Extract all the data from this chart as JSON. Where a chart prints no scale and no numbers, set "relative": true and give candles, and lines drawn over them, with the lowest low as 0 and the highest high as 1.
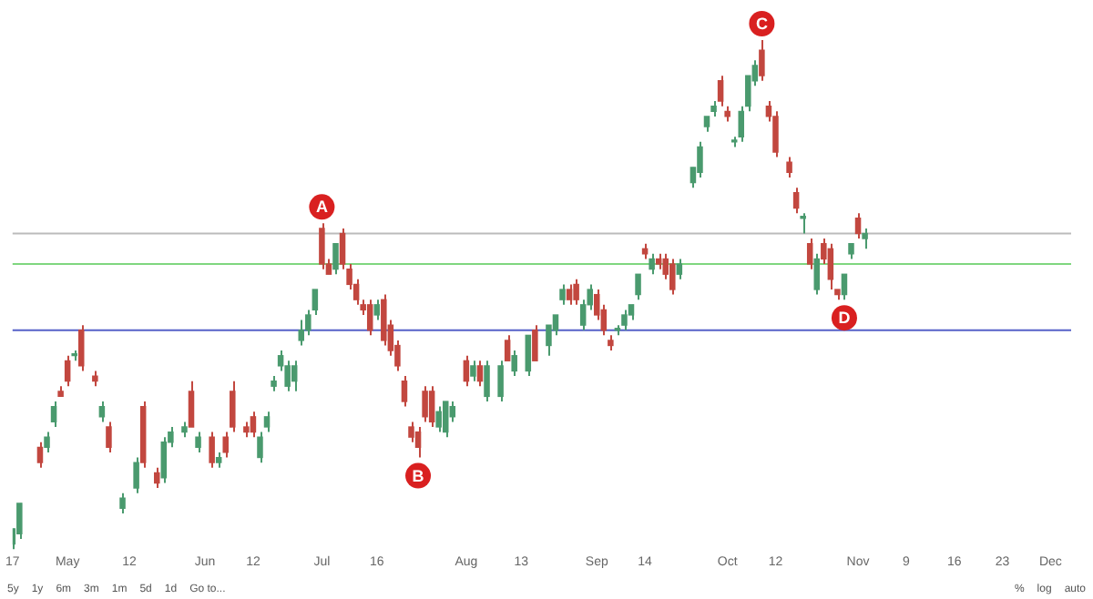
{
  "chart_data": {
    "type": "candlestick",
    "relative": true,
    "grid": false,
    "legend": false,
    "categories": [
      "17",
      null,
      null,
      null,
      null,
      null,
      null,
      null,
      "May",
      null,
      null,
      null,
      null,
      null,
      null,
      null,
      null,
      "12",
      null,
      null,
      null,
      null,
      null,
      null,
      null,
      null,
      null,
      null,
      "Jun",
      null,
      null,
      null,
      null,
      null,
      null,
      "12",
      null,
      null,
      null,
      null,
      null,
      null,
      null,
      null,
      null,
      "Jul",
      null,
      null,
      null,
      null,
      null,
      null,
      null,
      "16",
      null,
      null,
      null,
      null,
      null,
      null,
      null,
      null,
      null,
      null,
      null,
      null,
      "Aug",
      null,
      null,
      null,
      null,
      null,
      null,
      null,
      "13",
      null,
      null,
      null,
      null,
      null,
      null,
      null,
      null,
      null,
      null,
      "Sep",
      null,
      null,
      null,
      null,
      null,
      null,
      "14",
      null,
      null,
      null,
      null,
      null,
      null,
      null,
      null,
      null,
      null,
      null,
      "Oct",
      null,
      null,
      null,
      null,
      null,
      null,
      "12",
      null,
      null,
      null,
      null,
      null,
      null,
      null,
      null,
      null,
      null,
      null,
      "Nov",
      null,
      null,
      null,
      null,
      null,
      null,
      "9",
      null,
      null,
      null,
      null,
      null,
      null,
      "16",
      null,
      null,
      null,
      null,
      null,
      null,
      "23",
      null,
      null,
      null,
      null,
      null,
      null,
      "Dec",
      null,
      null,
      null
    ],
    "ohlc": [
      [
        0.01,
        0.04,
        0,
        0.04
      ],
      [
        0.03,
        0.09,
        0.02,
        0.09
      ],
      null,
      null,
      [
        0.2,
        0.21,
        0.16,
        0.17
      ],
      [
        0.2,
        0.23,
        0.19,
        0.22
      ],
      [
        0.25,
        0.29,
        0.24,
        0.28
      ],
      [
        0.31,
        0.32,
        0.3,
        0.3
      ],
      [
        0.37,
        0.38,
        0.32,
        0.33
      ],
      [
        0.38,
        0.39,
        0.37,
        0.38
      ],
      [
        0.43,
        0.44,
        0.35,
        0.36
      ],
      null,
      [
        0.34,
        0.35,
        0.32,
        0.33
      ],
      [
        0.26,
        0.29,
        0.25,
        0.28
      ],
      [
        0.24,
        0.25,
        0.19,
        0.2
      ],
      null,
      [
        0.08,
        0.11,
        0.07,
        0.1
      ],
      null,
      [
        0.12,
        0.18,
        0.11,
        0.17
      ],
      [
        0.28,
        0.29,
        0.16,
        0.17
      ],
      null,
      [
        0.15,
        0.16,
        0.12,
        0.13
      ],
      [
        0.14,
        0.22,
        0.13,
        0.21
      ],
      [
        0.21,
        0.24,
        0.2,
        0.23
      ],
      null,
      [
        0.23,
        0.25,
        0.22,
        0.24
      ],
      [
        0.31,
        0.33,
        0.24,
        0.24
      ],
      [
        0.2,
        0.23,
        0.19,
        0.22
      ],
      null,
      [
        0.22,
        0.23,
        0.16,
        0.17
      ],
      [
        0.17,
        0.19,
        0.16,
        0.18
      ],
      [
        0.22,
        0.23,
        0.18,
        0.19
      ],
      [
        0.31,
        0.33,
        0.23,
        0.24
      ],
      null,
      [
        0.24,
        0.25,
        0.22,
        0.23
      ],
      [
        0.26,
        0.27,
        0.22,
        0.23
      ],
      [
        0.18,
        0.23,
        0.17,
        0.22
      ],
      [
        0.24,
        0.27,
        0.23,
        0.26
      ],
      [
        0.32,
        0.34,
        0.31,
        0.33
      ],
      [
        0.36,
        0.39,
        0.35,
        0.38
      ],
      [
        0.32,
        0.37,
        0.31,
        0.36
      ],
      [
        0.33,
        0.37,
        0.31,
        0.36
      ],
      [
        0.41,
        0.45,
        0.4,
        0.43
      ],
      [
        0.43,
        0.47,
        0.42,
        0.46
      ],
      [
        0.47,
        0.51,
        0.46,
        0.51
      ],
      [
        0.63,
        0.64,
        0.55,
        0.56
      ],
      [
        0.56,
        0.57,
        0.54,
        0.54
      ],
      [
        0.55,
        0.6,
        0.54,
        0.6
      ],
      [
        0.62,
        0.63,
        0.55,
        0.56
      ],
      [
        0.55,
        0.56,
        0.51,
        0.52
      ],
      [
        0.52,
        0.53,
        0.48,
        0.49
      ],
      [
        0.48,
        0.49,
        0.46,
        0.47
      ],
      [
        0.48,
        0.49,
        0.42,
        0.43
      ],
      [
        0.46,
        0.49,
        0.45,
        0.48
      ],
      [
        0.49,
        0.5,
        0.4,
        0.41
      ],
      [
        0.44,
        0.45,
        0.38,
        0.39
      ],
      [
        0.4,
        0.41,
        0.35,
        0.36
      ],
      [
        0.33,
        0.34,
        0.28,
        0.29
      ],
      [
        0.24,
        0.25,
        0.21,
        0.22
      ],
      [
        0.23,
        0.24,
        0.18,
        0.2
      ],
      [
        0.31,
        0.32,
        0.25,
        0.26
      ],
      [
        0.31,
        0.32,
        0.24,
        0.25
      ],
      [
        0.24,
        0.28,
        0.23,
        0.27
      ],
      [
        0.23,
        0.29,
        0.22,
        0.29
      ],
      [
        0.26,
        0.29,
        0.25,
        0.28
      ],
      null,
      [
        0.37,
        0.38,
        0.32,
        0.33
      ],
      [
        0.34,
        0.37,
        0.33,
        0.36
      ],
      [
        0.36,
        0.37,
        0.32,
        0.33
      ],
      [
        0.3,
        0.37,
        0.29,
        0.36
      ],
      null,
      [
        0.3,
        0.37,
        0.29,
        0.36
      ],
      [
        0.41,
        0.42,
        0.37,
        0.37
      ],
      [
        0.35,
        0.39,
        0.34,
        0.38
      ],
      null,
      [
        0.35,
        0.42,
        0.34,
        0.42
      ],
      [
        0.43,
        0.44,
        0.37,
        0.37
      ],
      null,
      [
        0.4,
        0.44,
        0.38,
        0.44
      ],
      [
        0.43,
        0.46,
        0.42,
        0.46
      ],
      [
        0.49,
        0.52,
        0.48,
        0.51
      ],
      [
        0.51,
        0.52,
        0.48,
        0.49
      ],
      [
        0.52,
        0.53,
        0.48,
        0.49
      ],
      [
        0.44,
        0.49,
        0.43,
        0.48
      ],
      [
        0.48,
        0.52,
        0.47,
        0.51
      ],
      [
        0.5,
        0.51,
        0.45,
        0.46
      ],
      [
        0.47,
        0.48,
        0.42,
        0.43
      ],
      [
        0.41,
        0.42,
        0.39,
        0.4
      ],
      [
        0.43,
        0.44,
        0.42,
        0.43
      ],
      [
        0.44,
        0.47,
        0.43,
        0.46
      ],
      [
        0.46,
        0.48,
        0.45,
        0.48
      ],
      [
        0.5,
        0.54,
        0.49,
        0.54
      ],
      [
        0.59,
        0.6,
        0.57,
        0.58
      ],
      [
        0.55,
        0.58,
        0.54,
        0.57
      ],
      [
        0.57,
        0.58,
        0.55,
        0.56
      ],
      [
        0.57,
        0.58,
        0.53,
        0.54
      ],
      [
        0.56,
        0.57,
        0.5,
        0.51
      ],
      [
        0.54,
        0.57,
        0.53,
        0.56
      ],
      null,
      [
        0.72,
        0.75,
        0.71,
        0.75
      ],
      [
        0.74,
        0.8,
        0.73,
        0.79
      ],
      [
        0.83,
        0.85,
        0.82,
        0.85
      ],
      [
        0.86,
        0.88,
        0.85,
        0.87
      ],
      [
        0.92,
        0.93,
        0.87,
        0.88
      ],
      [
        0.86,
        0.87,
        0.84,
        0.85
      ],
      [
        0.8,
        0.81,
        0.79,
        0.8
      ],
      [
        0.81,
        0.87,
        0.8,
        0.86
      ],
      [
        0.87,
        0.93,
        0.86,
        0.93
      ],
      [
        0.92,
        0.96,
        0.91,
        0.95
      ],
      [
        0.98,
        1,
        0.92,
        0.93
      ],
      [
        0.87,
        0.88,
        0.84,
        0.85
      ],
      [
        0.85,
        0.86,
        0.77,
        0.78
      ],
      null,
      [
        0.76,
        0.77,
        0.73,
        0.74
      ],
      [
        0.7,
        0.71,
        0.66,
        0.67
      ],
      [
        0.65,
        0.66,
        0.62,
        0.65
      ],
      [
        0.6,
        0.61,
        0.55,
        0.56
      ],
      [
        0.51,
        0.58,
        0.5,
        0.57
      ],
      [
        0.6,
        0.61,
        0.56,
        0.57
      ],
      [
        0.59,
        0.6,
        0.51,
        0.53
      ],
      [
        0.51,
        0.51,
        0.49,
        0.5
      ],
      [
        0.5,
        0.54,
        0.49,
        0.54
      ],
      [
        0.58,
        0.6,
        0.57,
        0.6
      ],
      [
        0.65,
        0.66,
        0.61,
        0.62
      ],
      [
        0.61,
        0.63,
        0.59,
        0.62
      ],
      null,
      null,
      null,
      null,
      null,
      null,
      null,
      null,
      null,
      null,
      null,
      null,
      null,
      null,
      null,
      null,
      null,
      null,
      null,
      null,
      null,
      null,
      null,
      null,
      null,
      null,
      null,
      null,
      null,
      null
    ],
    "colors": [
      "#4a9a6e",
      "#4a9a6e",
      null,
      null,
      "#c2473f",
      "#4a9a6e",
      "#4a9a6e",
      "#c2473f",
      "#c2473f",
      "#4a9a6e",
      "#c2473f",
      null,
      "#c2473f",
      "#4a9a6e",
      "#c2473f",
      null,
      "#4a9a6e",
      null,
      "#4a9a6e",
      "#c2473f",
      null,
      "#c2473f",
      "#4a9a6e",
      "#4a9a6e",
      null,
      "#4a9a6e",
      "#c2473f",
      "#4a9a6e",
      null,
      "#c2473f",
      "#4a9a6e",
      "#c2473f",
      "#c2473f",
      null,
      "#c2473f",
      "#c2473f",
      "#4a9a6e",
      "#4a9a6e",
      "#4a9a6e",
      "#4a9a6e",
      "#4a9a6e",
      "#4a9a6e",
      "#4a9a6e",
      "#4a9a6e",
      "#4a9a6e",
      "#c2473f",
      "#c2473f",
      "#4a9a6e",
      "#c2473f",
      "#c2473f",
      "#c2473f",
      "#c2473f",
      "#c2473f",
      "#4a9a6e",
      "#c2473f",
      "#c2473f",
      "#c2473f",
      "#c2473f",
      "#c2473f",
      "#c2473f",
      "#c2473f",
      "#c2473f",
      "#4a9a6e",
      "#4a9a6e",
      "#4a9a6e",
      null,
      "#c2473f",
      "#4a9a6e",
      "#c2473f",
      "#4a9a6e",
      null,
      "#4a9a6e",
      "#c2473f",
      "#4a9a6e",
      null,
      "#4a9a6e",
      "#c2473f",
      null,
      "#4a9a6e",
      "#4a9a6e",
      "#4a9a6e",
      "#c2473f",
      "#c2473f",
      "#4a9a6e",
      "#4a9a6e",
      "#c2473f",
      "#c2473f",
      "#c2473f",
      "#4a9a6e",
      "#4a9a6e",
      "#4a9a6e",
      "#4a9a6e",
      "#c2473f",
      "#4a9a6e",
      "#c2473f",
      "#c2473f",
      "#c2473f",
      "#4a9a6e",
      null,
      "#4a9a6e",
      "#4a9a6e",
      "#4a9a6e",
      "#4a9a6e",
      "#c2473f",
      "#c2473f",
      "#4a9a6e",
      "#4a9a6e",
      "#4a9a6e",
      "#4a9a6e",
      "#c2473f",
      "#c2473f",
      "#c2473f",
      null,
      "#c2473f",
      "#c2473f",
      "#4a9a6e",
      "#c2473f",
      "#4a9a6e",
      "#c2473f",
      "#c2473f",
      "#c2473f",
      "#4a9a6e",
      "#4a9a6e",
      "#c2473f",
      "#4a9a6e",
      null,
      null,
      null,
      null,
      null,
      null,
      null,
      null,
      null,
      null,
      null,
      null,
      null,
      null,
      null,
      null,
      null,
      null,
      null,
      null,
      null,
      null,
      null,
      null,
      null,
      null,
      null,
      null,
      null,
      null
    ],
    "value_labels": [
      null,
      null,
      null,
      null,
      null,
      null,
      null,
      null,
      null,
      null,
      null,
      null,
      null,
      null,
      null,
      null,
      null,
      null,
      null,
      null,
      null,
      null,
      null,
      null,
      null,
      null,
      null,
      null,
      null,
      null,
      null,
      null,
      null,
      null,
      null,
      null,
      null,
      null,
      null,
      null,
      null,
      null,
      null,
      null,
      null,
      "A",
      null,
      null,
      null,
      null,
      null,
      null,
      null,
      null,
      null,
      null,
      null,
      null,
      null,
      "B",
      null,
      null,
      null,
      null,
      null,
      null,
      null,
      null,
      null,
      null,
      null,
      null,
      null,
      null,
      null,
      null,
      null,
      null,
      null,
      null,
      null,
      null,
      null,
      null,
      null,
      null,
      null,
      null,
      null,
      null,
      null,
      null,
      null,
      null,
      null,
      null,
      null,
      null,
      null,
      null,
      null,
      null,
      null,
      null,
      null,
      null,
      null,
      null,
      null,
      "C",
      null,
      null,
      null,
      null,
      null,
      null,
      null,
      null,
      null,
      null,
      null,
      "D",
      null,
      null,
      null,
      null,
      null,
      null,
      null,
      null,
      null,
      null,
      null,
      null,
      null,
      null,
      null,
      null,
      null,
      null,
      null,
      null,
      null,
      null,
      null,
      null,
      null,
      null,
      null,
      null,
      null,
      null,
      null,
      null,
      null
    ],
    "ref_lines": [
      {
        "axis": "y",
        "value": 0.62,
        "color": "#bbbbbb"
      },
      {
        "axis": "y",
        "value": 0.56,
        "color": "#7fd67f"
      },
      {
        "axis": "y",
        "value": 0.43,
        "color": "#5560c8"
      }
    ],
    "annotations": [
      "5y",
      "1y",
      "6m",
      "3m",
      "1m",
      "5d",
      "1d",
      "Go to...",
      "%",
      "log",
      "auto"
    ]
  }
}
